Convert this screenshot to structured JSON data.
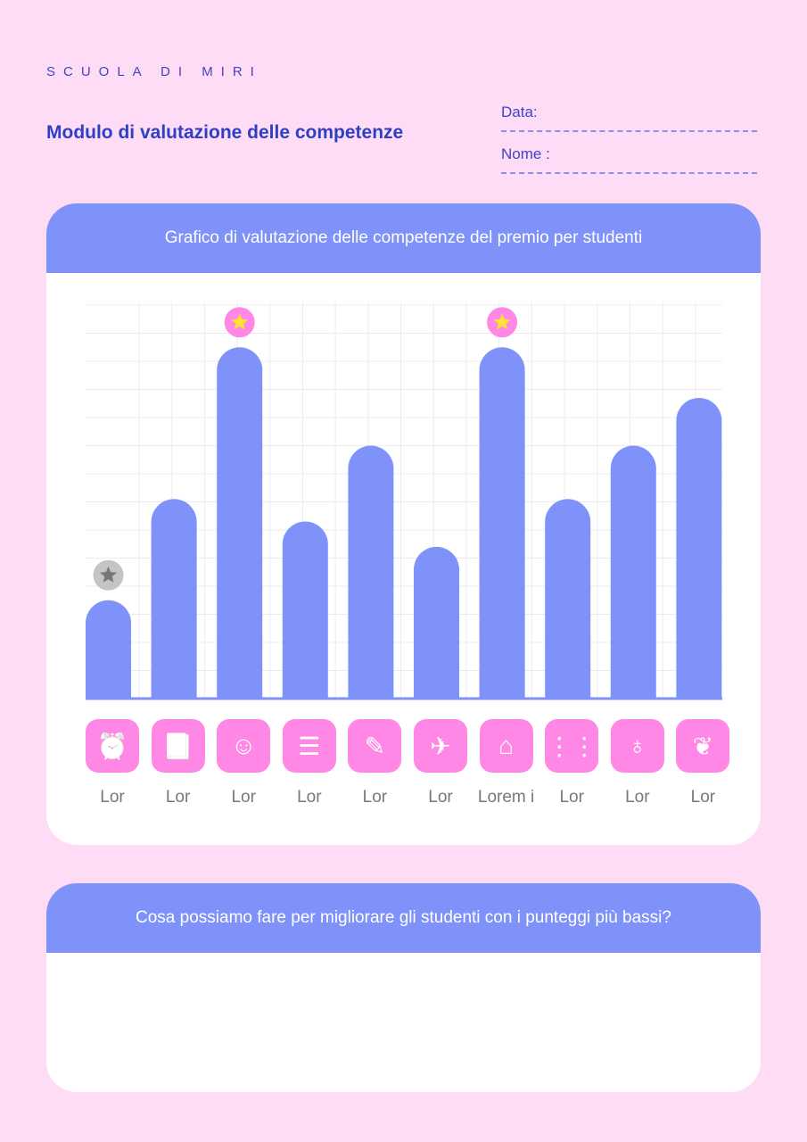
{
  "brand": "SCUOLA DI MIRI",
  "title": "Modulo di valutazione delle competenze",
  "fields": {
    "date": "Data:",
    "name": "Nome :"
  },
  "chart_card": {
    "heading": "Grafico di valutazione delle competenze del premio per studenti"
  },
  "question_card": {
    "heading": "Cosa possiamo fare per migliorare gli studenti con i punteggi più bassi?"
  },
  "colors": {
    "bar": "#7e92fa",
    "icon_bg": "#ff88e6",
    "gold_star": "#ffe033",
    "gray_star": "#777777"
  },
  "chart_data": {
    "type": "bar",
    "categories": [
      "Lor",
      "Lor",
      "Lor",
      "Lor",
      "Lor",
      "Lor",
      "Lorem i",
      "Lor",
      "Lor",
      "Lor"
    ],
    "icons": [
      "alarm-clock-icon",
      "book-icon",
      "head-icon",
      "drawers-icon",
      "pencil-icon",
      "paper-plane-icon",
      "3d-printer-icon",
      "abacus-icon",
      "apple-icon",
      "plant-book-icon"
    ],
    "values": [
      3.5,
      7.1,
      12.5,
      6.3,
      9,
      5.4,
      12.5,
      7.1,
      9,
      10.7
    ],
    "badges": [
      "gray-star",
      "",
      "gold-star",
      "",
      "",
      "",
      "gold-star",
      "",
      "",
      ""
    ],
    "ylim": [
      0,
      14
    ],
    "grid": true
  }
}
